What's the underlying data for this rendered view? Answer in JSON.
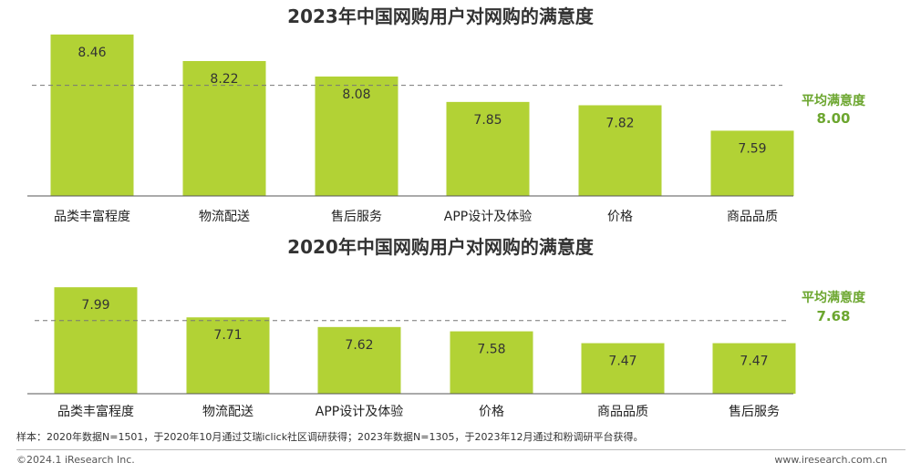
{
  "chart_data": [
    {
      "type": "bar",
      "title": "2023年中国网购用户对网购的满意度",
      "categories": [
        "品类丰富程度",
        "物流配送",
        "售后服务",
        "APP设计及体验",
        "价格",
        "商品品质"
      ],
      "values": [
        8.46,
        8.22,
        8.08,
        7.85,
        7.82,
        7.59
      ],
      "average_label": "平均满意度",
      "average_value": 8.0,
      "average_text": "8.00",
      "ylim": [
        7.0,
        8.5
      ],
      "grid": false,
      "bar_color": "#b2d235"
    },
    {
      "type": "bar",
      "title": "2020年中国网购用户对网购的满意度",
      "categories": [
        "品类丰富程度",
        "物流配送",
        "APP设计及体验",
        "价格",
        "商品品质",
        "售后服务"
      ],
      "values": [
        7.99,
        7.71,
        7.62,
        7.58,
        7.47,
        7.47
      ],
      "average_label": "平均满意度",
      "average_value": 7.68,
      "average_text": "7.68",
      "ylim": [
        7.0,
        8.0
      ],
      "grid": false,
      "bar_color": "#b2d235"
    }
  ],
  "footnote": "样本：2020年数据N=1501，于2020年10月通过艾瑞iclick社区调研获得；2023年数据N=1305，于2023年12月通过和粉调研平台获得。",
  "footer": {
    "copyright": "©2024.1 iResearch Inc.",
    "website": "www.iresearch.com.cn"
  },
  "colors": {
    "bar": "#b2d235",
    "average": "#6ca62f"
  }
}
